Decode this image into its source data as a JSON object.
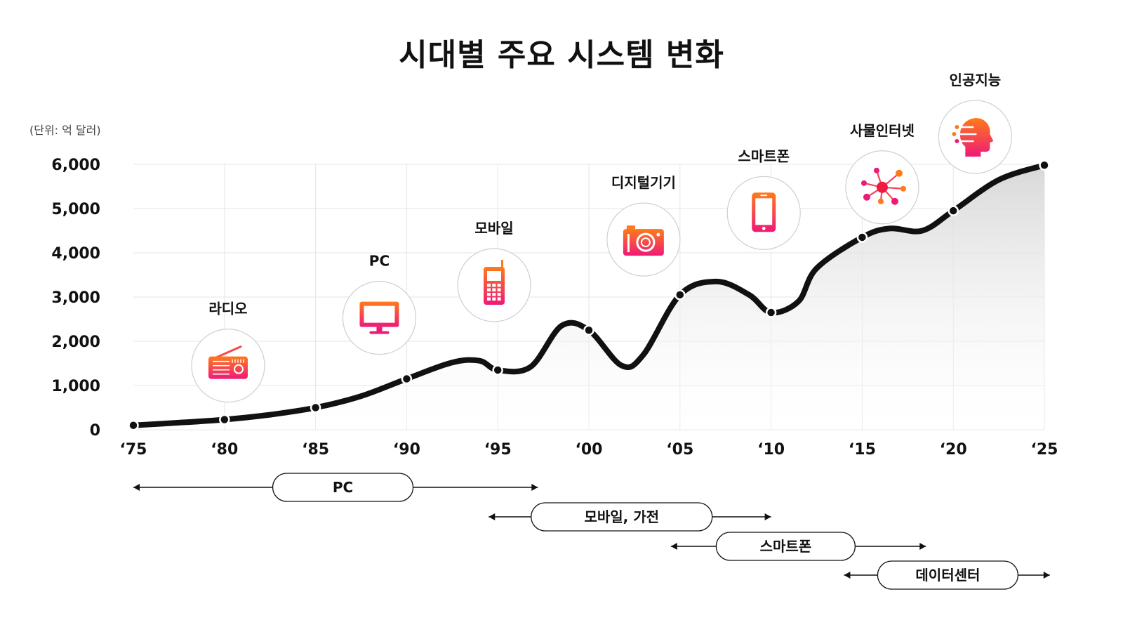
{
  "title": "시대별 주요 시스템 변화",
  "chart_data": {
    "type": "area",
    "title": "시대별 주요 시스템 변화",
    "unit": "(단위: 억 달러)",
    "ylim": [
      0,
      6000
    ],
    "yticks": [
      "0",
      "1,000",
      "2,000",
      "3,000",
      "4,000",
      "5,000",
      "6,000"
    ],
    "ytick_values": [
      0,
      1000,
      2000,
      3000,
      4000,
      5000,
      6000
    ],
    "xlim": [
      1975,
      2025
    ],
    "xticks": [
      "‘75",
      "‘80",
      "‘85",
      "‘90",
      "‘95",
      "‘00",
      "‘05",
      "‘10",
      "‘15",
      "‘20",
      "‘25"
    ],
    "xtick_values": [
      1975,
      1980,
      1985,
      1990,
      1995,
      2000,
      2005,
      2010,
      2015,
      2020,
      2025
    ],
    "grid": true,
    "curve": [
      {
        "x": 1975,
        "y": 100
      },
      {
        "x": 1977.5,
        "y": 160
      },
      {
        "x": 1980,
        "y": 230
      },
      {
        "x": 1982.5,
        "y": 340
      },
      {
        "x": 1985,
        "y": 500
      },
      {
        "x": 1987.5,
        "y": 760
      },
      {
        "x": 1990,
        "y": 1150
      },
      {
        "x": 1992.5,
        "y": 1520
      },
      {
        "x": 1994,
        "y": 1560
      },
      {
        "x": 1995,
        "y": 1350
      },
      {
        "x": 1996.8,
        "y": 1420
      },
      {
        "x": 1998.5,
        "y": 2350
      },
      {
        "x": 2000,
        "y": 2250
      },
      {
        "x": 2001.8,
        "y": 1450
      },
      {
        "x": 2003,
        "y": 1700
      },
      {
        "x": 2005,
        "y": 3050
      },
      {
        "x": 2007,
        "y": 3350
      },
      {
        "x": 2008.8,
        "y": 3050
      },
      {
        "x": 2010,
        "y": 2650
      },
      {
        "x": 2011.5,
        "y": 2900
      },
      {
        "x": 2012.5,
        "y": 3650
      },
      {
        "x": 2015,
        "y": 4350
      },
      {
        "x": 2016.5,
        "y": 4550
      },
      {
        "x": 2018.3,
        "y": 4500
      },
      {
        "x": 2020,
        "y": 4950
      },
      {
        "x": 2022.5,
        "y": 5650
      },
      {
        "x": 2025,
        "y": 5980
      }
    ],
    "markers": [
      {
        "x": 1975,
        "y": 100
      },
      {
        "x": 1980,
        "y": 230
      },
      {
        "x": 1985,
        "y": 500
      },
      {
        "x": 1990,
        "y": 1150
      },
      {
        "x": 1995,
        "y": 1350
      },
      {
        "x": 2000,
        "y": 2250
      },
      {
        "x": 2005,
        "y": 3050
      },
      {
        "x": 2010,
        "y": 2650
      },
      {
        "x": 2015,
        "y": 4350
      },
      {
        "x": 2020,
        "y": 4950
      },
      {
        "x": 2025,
        "y": 5980
      }
    ],
    "colors": {
      "line": "#111111",
      "icon_start": "#ff7a1a",
      "icon_end": "#ef1a78",
      "grid": "#e6e6e6",
      "circle": "#cfcfcf"
    },
    "icons": [
      {
        "label": "라디오",
        "icon": "radio-icon",
        "x": 1980.2,
        "y": 1450
      },
      {
        "label": "PC",
        "icon": "monitor-icon",
        "x": 1988.5,
        "y": 2530
      },
      {
        "label": "모바일",
        "icon": "mobile-phone-icon",
        "x": 1994.8,
        "y": 3270
      },
      {
        "label": "디지털기기",
        "icon": "camera-icon",
        "x": 2003,
        "y": 4300
      },
      {
        "label": "스마트폰",
        "icon": "smartphone-icon",
        "x": 2009.6,
        "y": 4900
      },
      {
        "label": "사물인터넷",
        "icon": "iot-network-icon",
        "x": 2016.1,
        "y": 5480
      },
      {
        "label": "인공지능",
        "icon": "ai-head-icon",
        "x": 2021.2,
        "y": 6620
      }
    ],
    "eras": [
      {
        "label": "PC",
        "start": 1975,
        "end": 1997.2,
        "label_center": 1986.5
      },
      {
        "label": "모바일, 가전",
        "start": 1994.5,
        "end": 2010,
        "label_center": 2001.8
      },
      {
        "label": "스마트폰",
        "start": 2004.5,
        "end": 2018.5,
        "label_center": 2010.8
      },
      {
        "label": "데이터센터",
        "start": 2014,
        "end": 2025.3,
        "label_center": 2019.7
      }
    ]
  }
}
